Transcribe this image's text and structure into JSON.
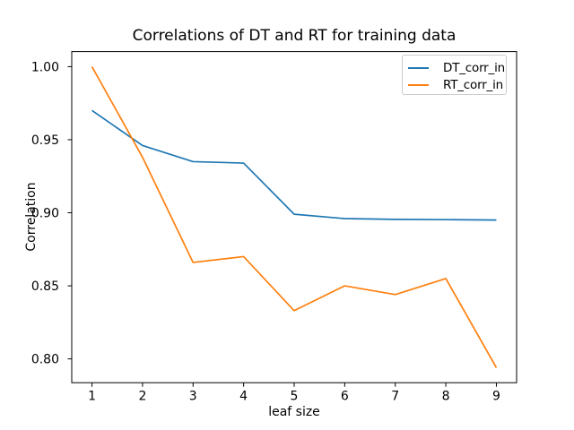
{
  "chart_data": {
    "type": "line",
    "title": "Correlations of DT and RT for training data",
    "xlabel": "leaf size",
    "ylabel": "Correlation",
    "x": [
      1,
      2,
      3,
      4,
      5,
      6,
      7,
      8,
      9
    ],
    "series": [
      {
        "name": "DT_corr_in",
        "color": "#1f77b4",
        "values": [
          0.97,
          0.946,
          0.935,
          0.934,
          0.899,
          0.896,
          0.8955,
          0.8953,
          0.895
        ]
      },
      {
        "name": "RT_corr_in",
        "color": "#ff7f0e",
        "values": [
          1.0,
          0.938,
          0.866,
          0.87,
          0.833,
          0.85,
          0.844,
          0.855,
          0.794
        ]
      }
    ],
    "xticks": [
      1,
      2,
      3,
      4,
      5,
      6,
      7,
      8,
      9
    ],
    "xtick_labels": [
      "1",
      "2",
      "3",
      "4",
      "5",
      "6",
      "7",
      "8",
      "9"
    ],
    "yticks": [
      0.8,
      0.85,
      0.9,
      0.95,
      1.0
    ],
    "ytick_labels": [
      "0.80",
      "0.85",
      "0.90",
      "0.95",
      "1.00"
    ],
    "xlim": [
      0.6,
      9.4
    ],
    "ylim": [
      0.7837,
      1.0103
    ],
    "grid": false,
    "legend": {
      "location": "upper right",
      "entries": [
        "DT_corr_in",
        "RT_corr_in"
      ]
    },
    "colors": {
      "spine": "#000000",
      "background": "#ffffff",
      "legend_border": "#cccccc"
    }
  }
}
